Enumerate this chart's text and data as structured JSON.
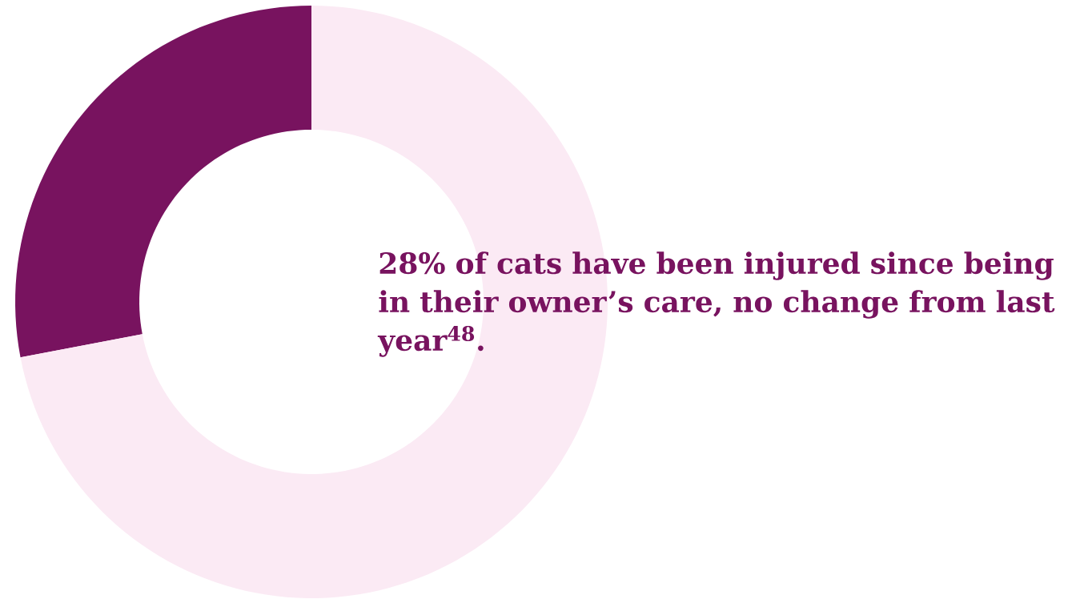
{
  "chart_data": {
    "type": "donut",
    "title": "28% of cats have been injured since being in their owner’s care, no change from last year$^{48}$.",
    "categories": [
      null,
      null
    ],
    "values": [
      28,
      72
    ],
    "colors": [
      "#78135f",
      "#fbeaf4"
    ]
  }
}
